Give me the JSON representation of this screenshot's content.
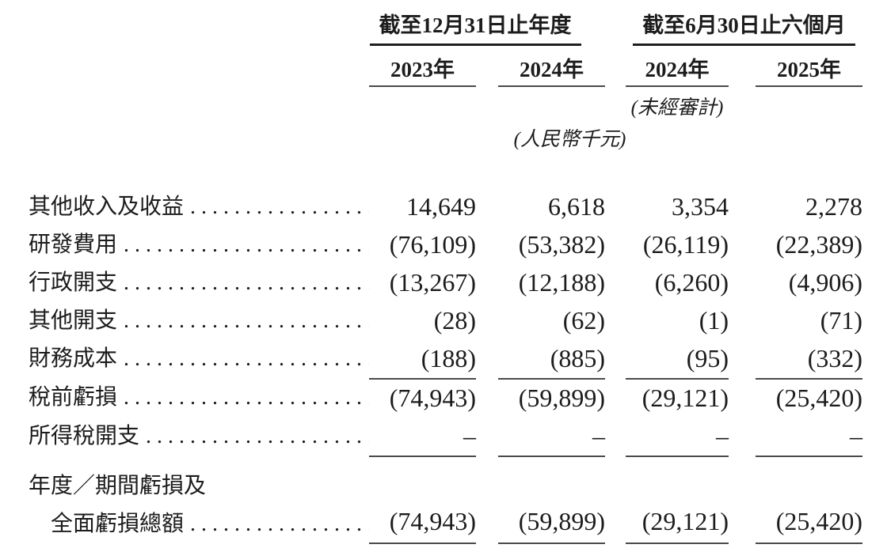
{
  "page": {
    "background_color": "#ffffff",
    "text_color": "#1c1c1c",
    "rule_color": "#4a4a4a"
  },
  "table": {
    "column_groups": [
      {
        "title": "截至12月31日止年度",
        "years": [
          "2023年",
          "2024年"
        ]
      },
      {
        "title": "截至6月30日止六個月",
        "years": [
          "2024年",
          "2025年"
        ]
      }
    ],
    "notes": {
      "unaudited": "(未經審計)",
      "currency_unit": "(人民幣千元)"
    },
    "rows": [
      {
        "label": "其他收入及收益",
        "values": [
          "14,649",
          "6,618",
          "3,354",
          "2,278"
        ],
        "rule_below": false
      },
      {
        "label": "研發費用",
        "values": [
          "(76,109)",
          "(53,382)",
          "(26,119)",
          "(22,389)"
        ],
        "rule_below": false
      },
      {
        "label": "行政開支",
        "values": [
          "(13,267)",
          "(12,188)",
          "(6,260)",
          "(4,906)"
        ],
        "rule_below": false
      },
      {
        "label": "其他開支",
        "values": [
          "(28)",
          "(62)",
          "(1)",
          "(71)"
        ],
        "rule_below": false
      },
      {
        "label": "財務成本",
        "values": [
          "(188)",
          "(885)",
          "(95)",
          "(332)"
        ],
        "rule_below": true
      },
      {
        "label": "稅前虧損",
        "values": [
          "(74,943)",
          "(59,899)",
          "(29,121)",
          "(25,420)"
        ],
        "rule_below": false
      },
      {
        "label": "所得稅開支",
        "values": [
          "–",
          "–",
          "–",
          "–"
        ],
        "rule_below": true
      },
      {
        "label": "年度／期間虧損及",
        "label2": "全面虧損總額",
        "values": [
          "(74,943)",
          "(59,899)",
          "(29,121)",
          "(25,420)"
        ],
        "rule_below": true
      }
    ]
  }
}
